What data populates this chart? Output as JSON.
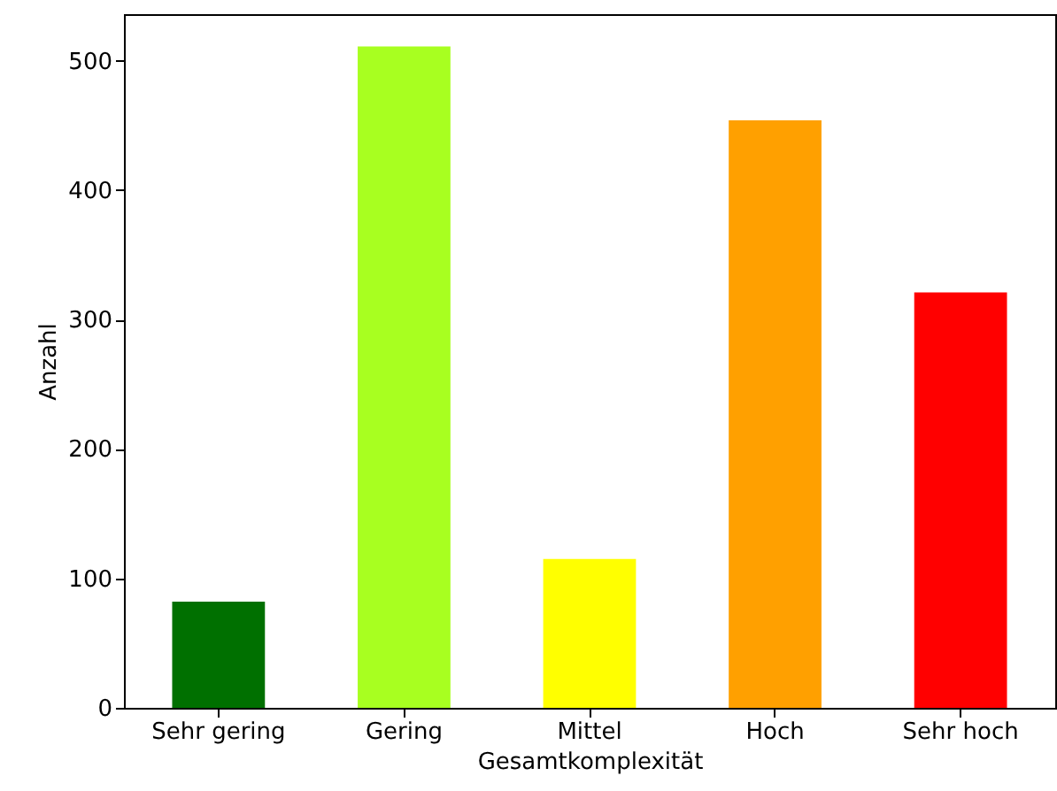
{
  "chart_data": {
    "type": "bar",
    "xlabel": "Gesamtkomplexität",
    "ylabel": "Anzahl",
    "categories": [
      "Sehr gering",
      "Gering",
      "Mittel",
      "Hoch",
      "Sehr hoch"
    ],
    "values": [
      82,
      511,
      115,
      454,
      321
    ],
    "colors": [
      "#007000",
      "#a8ff20",
      "#ffff00",
      "#ffa000",
      "#ff0000"
    ],
    "ylim": [
      0,
      536
    ],
    "yticks": [
      0,
      100,
      200,
      300,
      400,
      500
    ],
    "grid": false
  }
}
